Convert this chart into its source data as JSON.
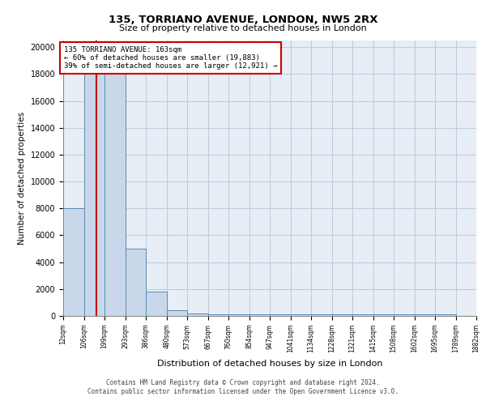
{
  "title1": "135, TORRIANO AVENUE, LONDON, NW5 2RX",
  "title2": "Size of property relative to detached houses in London",
  "xlabel": "Distribution of detached houses by size in London",
  "ylabel": "Number of detached properties",
  "bin_edges": [
    12,
    106,
    199,
    293,
    386,
    480,
    573,
    667,
    760,
    854,
    947,
    1041,
    1134,
    1228,
    1321,
    1415,
    1508,
    1602,
    1695,
    1789,
    1882
  ],
  "bin_heights": [
    8000,
    19300,
    19300,
    5000,
    1800,
    400,
    200,
    150,
    150,
    100,
    100,
    100,
    100,
    100,
    100,
    100,
    100,
    100,
    100
  ],
  "bar_facecolor": "#c8d8ea",
  "bar_edgecolor": "#5a8ab5",
  "grid_color": "#c0ccdd",
  "background_color": "#e8eef5",
  "property_size": 163,
  "vline_color": "#cc0000",
  "annotation_box_color": "#cc0000",
  "annotation_text_line1": "135 TORRIANO AVENUE: 163sqm",
  "annotation_text_line2": "← 60% of detached houses are smaller (19,883)",
  "annotation_text_line3": "39% of semi-detached houses are larger (12,921) →",
  "ylim": [
    0,
    20500
  ],
  "yticks": [
    0,
    2000,
    4000,
    6000,
    8000,
    10000,
    12000,
    14000,
    16000,
    18000,
    20000
  ],
  "footer_line1": "Contains HM Land Registry data © Crown copyright and database right 2024.",
  "footer_line2": "Contains public sector information licensed under the Open Government Licence v3.0.",
  "tick_labels": [
    "12sqm",
    "106sqm",
    "199sqm",
    "293sqm",
    "386sqm",
    "480sqm",
    "573sqm",
    "667sqm",
    "760sqm",
    "854sqm",
    "947sqm",
    "1041sqm",
    "1134sqm",
    "1228sqm",
    "1321sqm",
    "1415sqm",
    "1508sqm",
    "1602sqm",
    "1695sqm",
    "1789sqm",
    "1882sqm"
  ]
}
